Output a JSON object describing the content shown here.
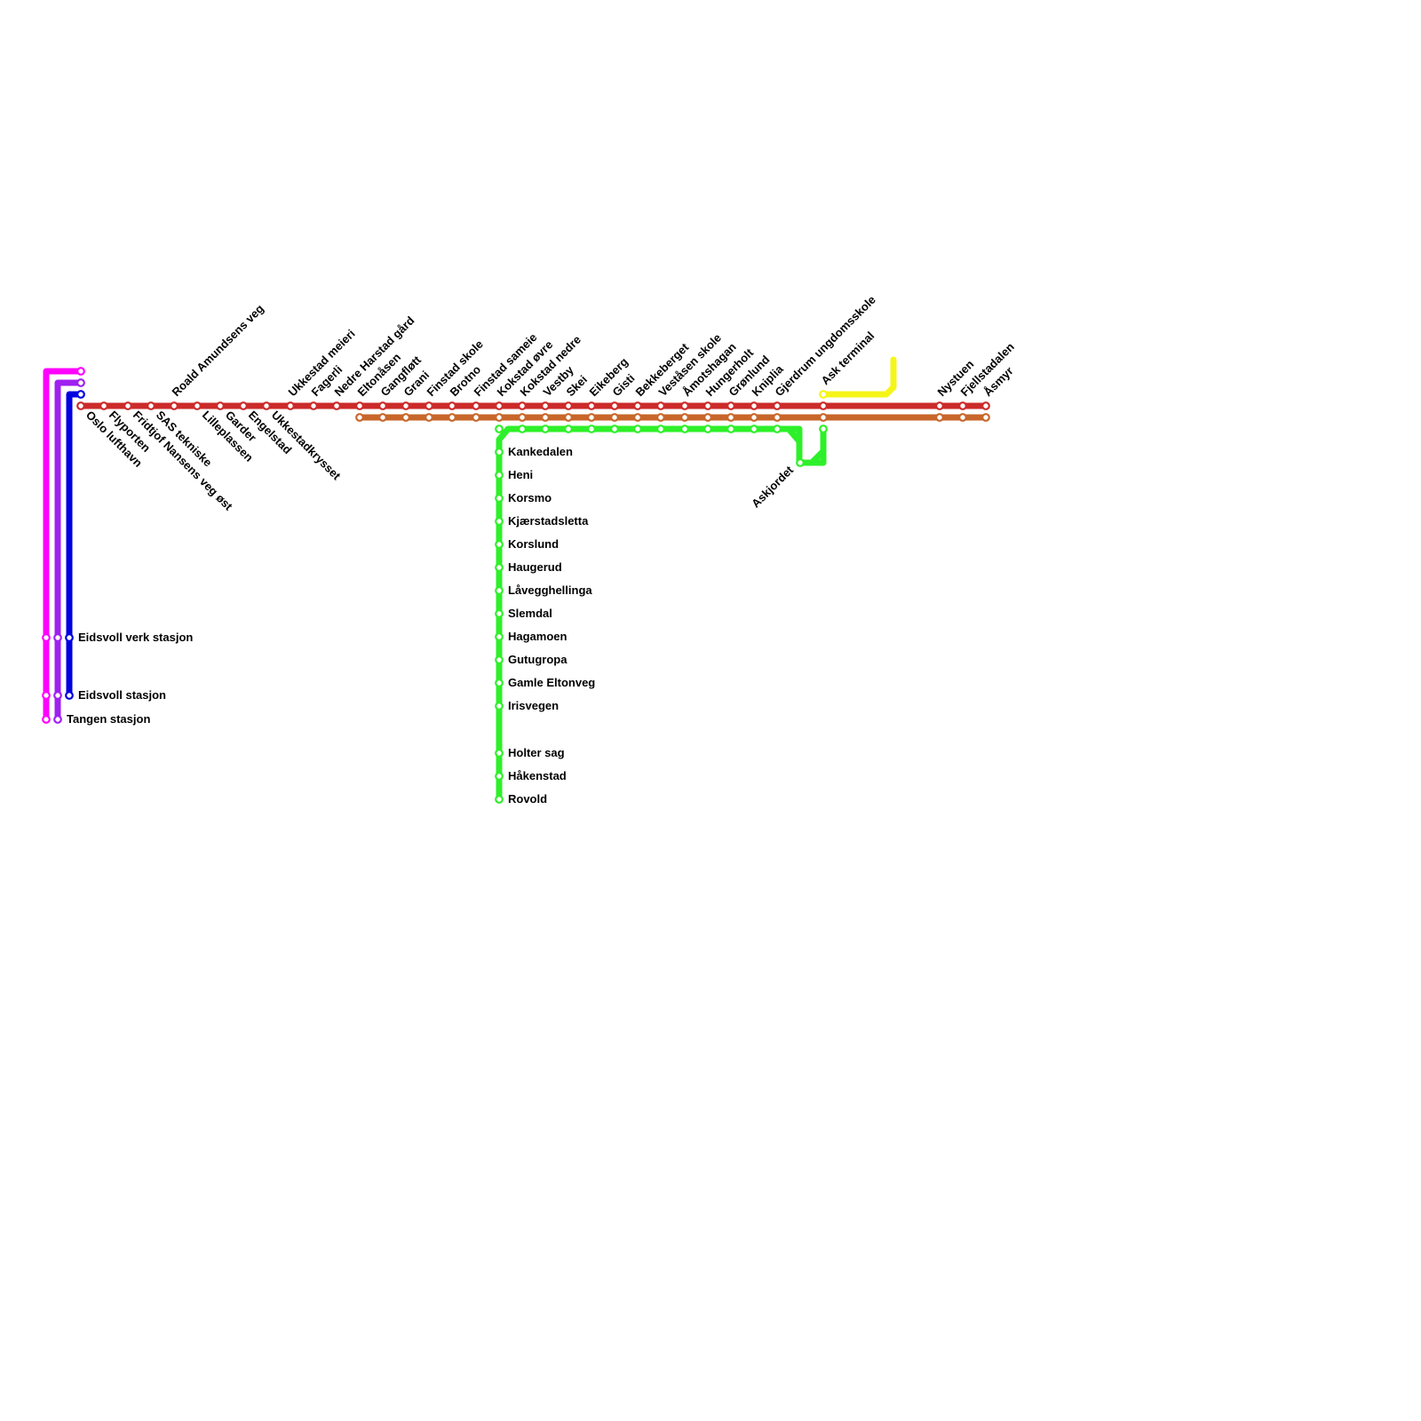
{
  "stations": {
    "main": [
      "Oslo lufthavn",
      "Flyporten",
      "Fridtjof Nansens veg øst",
      "SAS tekniske",
      "Roald Amundsens veg",
      "Lilleplassen",
      "Garder",
      "Engelstad",
      "Ukkestadkrysset",
      "Ukkestad meieri",
      "Fagerli",
      "Nedre Harstad gård",
      "Eltonåsen",
      "Gangfløtt",
      "Grani",
      "Finstad skole",
      "Brotno",
      "Finstad sameie",
      "Kokstad øvre",
      "Kokstad nedre",
      "Vestby",
      "Skei",
      "Eikeberg",
      "Gisti",
      "Bekkeberget",
      "Veståsen skole",
      "Åmotshagan",
      "Hungerholt",
      "Grønlund",
      "Kniplia",
      "Gjerdrum ungdomsskole",
      "Ask terminal",
      "Nystuen",
      "Fjellstadalen",
      "Åsmyr"
    ],
    "green_branch": [
      "Kankedalen",
      "Heni",
      "Korsmo",
      "Kjærstadsletta",
      "Korslund",
      "Haugerud",
      "Låvegghellinga",
      "Slemdal",
      "Hagamoen",
      "Gutugropa",
      "Gamle Eltonveg",
      "Irisvegen",
      "Holter sag",
      "Håkenstad",
      "Rovold"
    ],
    "airport_branch": [
      "Eidsvoll verk stasjon",
      "Eidsvoll stasjon",
      "Tangen stasjon"
    ],
    "loop": "Askjordet"
  }
}
